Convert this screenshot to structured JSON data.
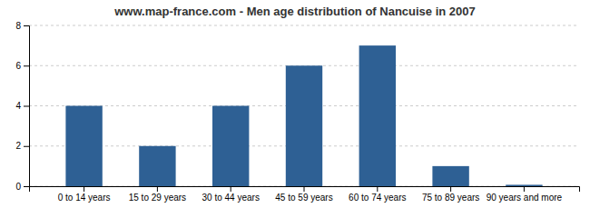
{
  "chart_data": {
    "type": "bar",
    "title": "www.map-france.com - Men age distribution of Nancuise in 2007",
    "categories": [
      "0 to 14 years",
      "15 to 29 years",
      "30 to 44 years",
      "45 to 59 years",
      "60 to 74 years",
      "75 to 89 years",
      "90 years and more"
    ],
    "values": [
      4,
      2,
      4,
      6,
      7,
      1,
      0.07
    ],
    "color": "#2e6094",
    "ylim": [
      0,
      8
    ],
    "yticks": [
      0,
      2,
      4,
      6,
      8
    ],
    "grid": true
  }
}
